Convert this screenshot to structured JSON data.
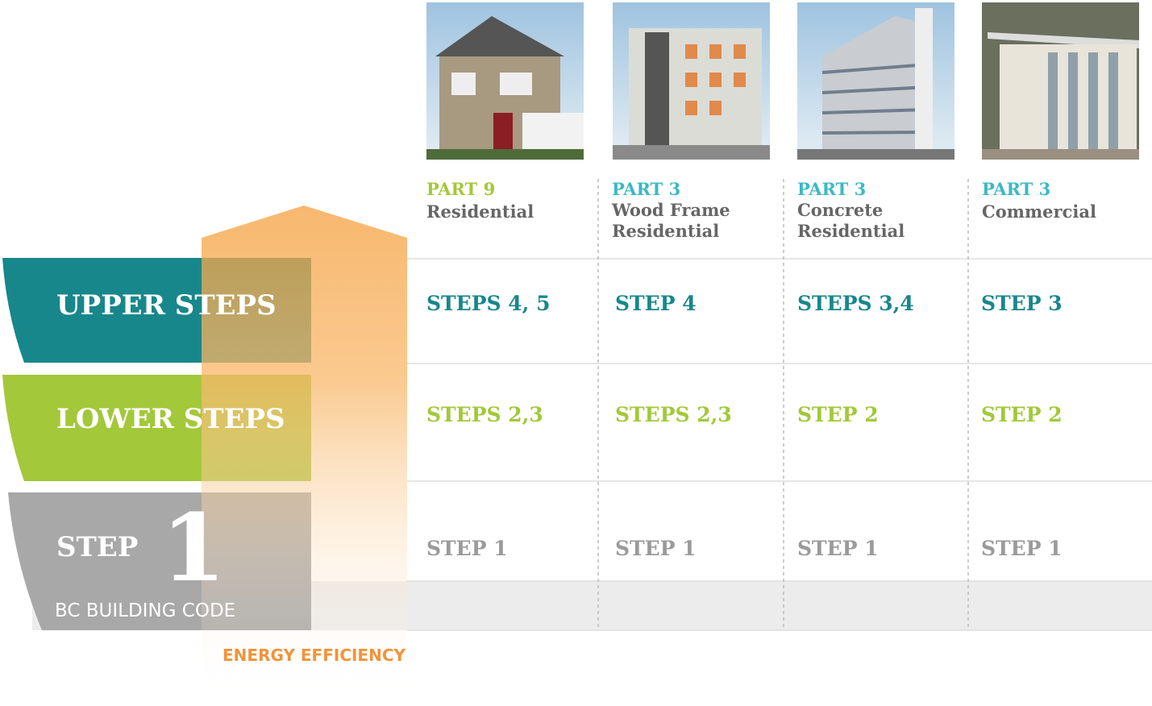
{
  "tiers": [
    {
      "label": "UPPER STEPS"
    },
    {
      "label": "LOWER STEPS"
    },
    {
      "label": "STEP",
      "numeral": "1",
      "sublabel": "BC BUILDING CODE"
    }
  ],
  "axis_label": "ENERGY EFFICIENCY",
  "columns": [
    {
      "part": "PART 9",
      "type": [
        "Residential"
      ]
    },
    {
      "part": "PART 3",
      "type": [
        "Wood Frame",
        "Residential"
      ]
    },
    {
      "part": "PART 3",
      "type": [
        "Concrete",
        "Residential"
      ]
    },
    {
      "part": "PART 3",
      "type": [
        "Commercial"
      ]
    }
  ],
  "rows": [
    [
      "STEPS 4, 5",
      "STEP 4",
      "STEPS 3,4",
      "STEP 3"
    ],
    [
      "STEPS 2,3",
      "STEPS 2,3",
      "STEP 2",
      "STEP 2"
    ],
    [
      "STEP 1",
      "STEP 1",
      "STEP 1",
      "STEP 1"
    ]
  ]
}
